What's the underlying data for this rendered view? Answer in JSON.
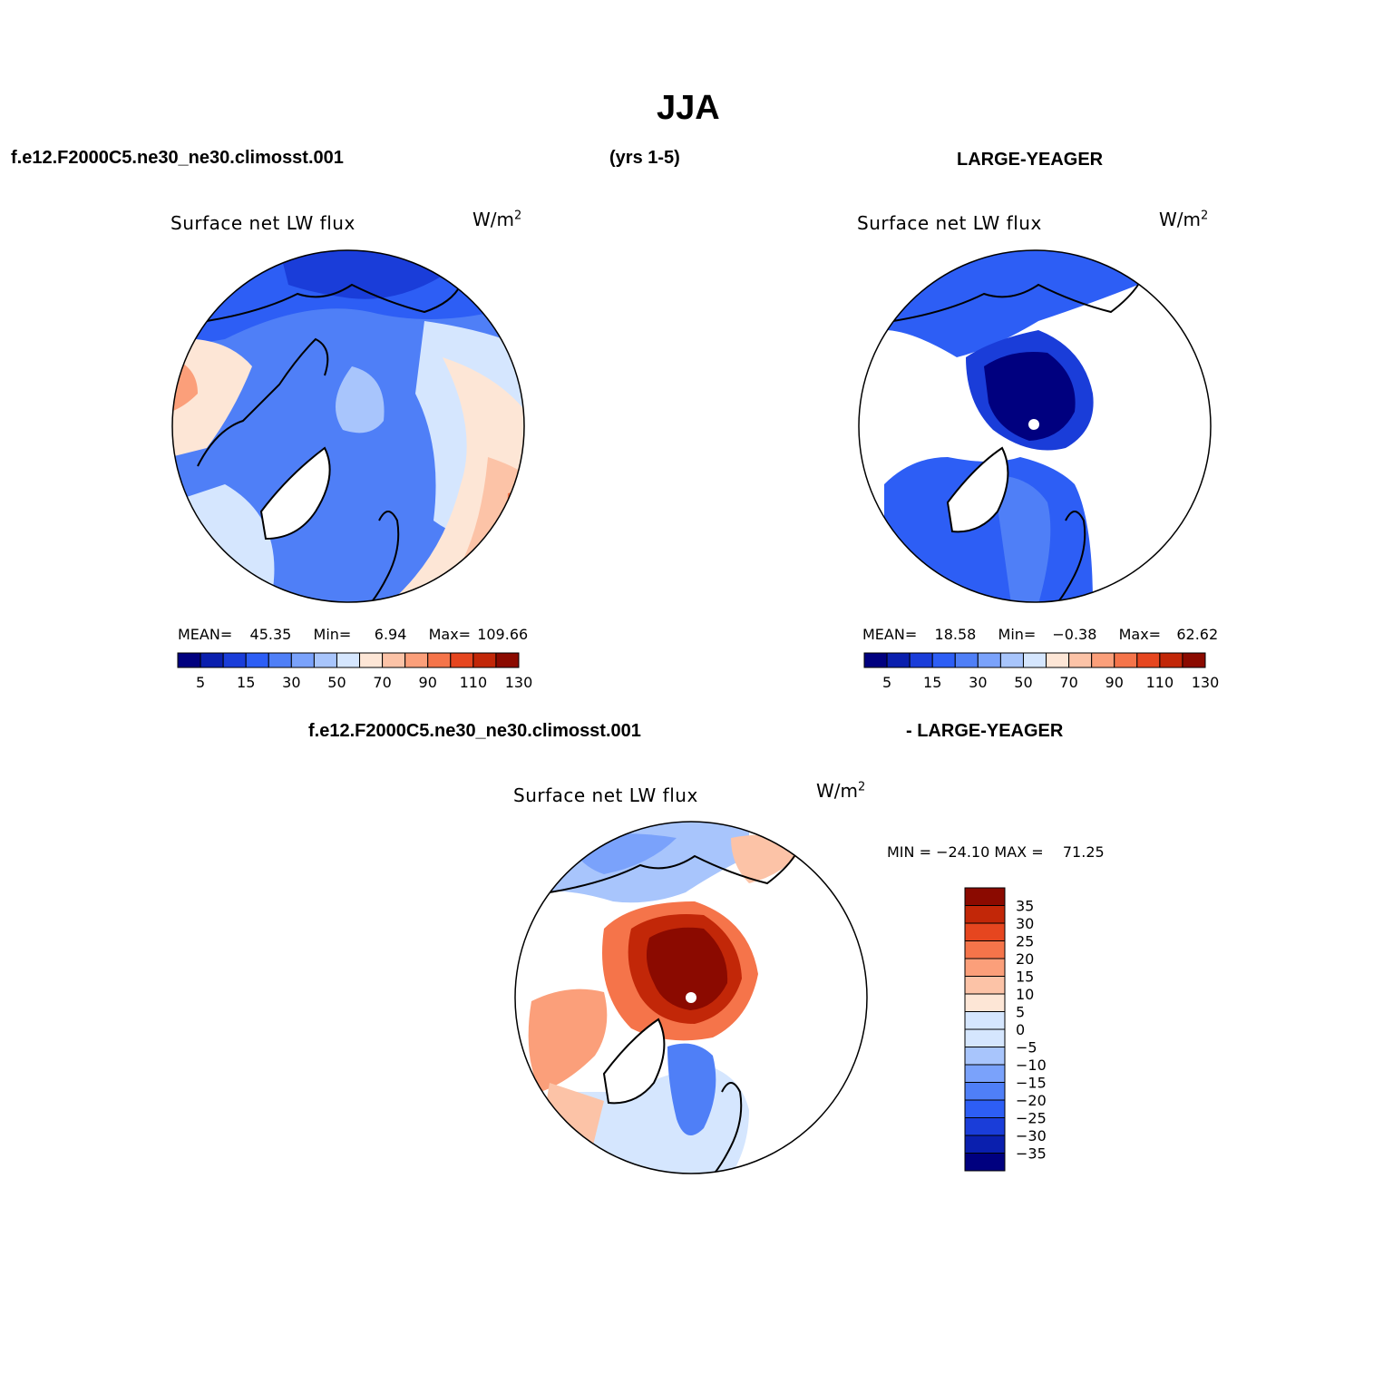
{
  "main_title": "JJA",
  "header": {
    "left_case": "f.e12.F2000C5.ne30_ne30.climosst.001",
    "years": "(yrs 1-5)",
    "right_case": "LARGE-YEAGER"
  },
  "diff_header": {
    "left": "f.e12.F2000C5.ne30_ne30.climosst.001",
    "right": "- LARGE-YEAGER"
  },
  "colors": {
    "seq": [
      "#00007f",
      "#0a1fae",
      "#1a3dd9",
      "#2d5ef5",
      "#4f7ff7",
      "#7aa2fb",
      "#a8c5fc",
      "#d5e6fe",
      "#fde6d6",
      "#fcc3a7",
      "#fb9f7a",
      "#f5744a",
      "#e6461f",
      "#c22708",
      "#8b0a00"
    ],
    "land": "#ffffff",
    "coast": "#000000"
  },
  "chart_data": [
    {
      "type": "heatmap",
      "title": "Surface net LW flux",
      "units": "W/m",
      "units_sup": "2",
      "projection": "north polar stereographic",
      "stats": {
        "mean_label": "MEAN=",
        "mean": "45.35",
        "min_label": "Min=",
        "min": "6.94",
        "max_label": "Max=",
        "max": "109.66"
      },
      "colorbar": {
        "orientation": "horizontal",
        "levels": [
          0,
          5,
          10,
          15,
          20,
          30,
          40,
          50,
          60,
          70,
          80,
          90,
          100,
          110,
          120,
          130
        ],
        "tick_labels": [
          "5",
          "15",
          "30",
          "50",
          "70",
          "90",
          "110",
          "130"
        ]
      }
    },
    {
      "type": "heatmap",
      "title": "Surface net LW flux",
      "units": "W/m",
      "units_sup": "2",
      "projection": "north polar stereographic",
      "stats": {
        "mean_label": "MEAN=",
        "mean": "18.58",
        "min_label": "Min=",
        "min": "−0.38",
        "max_label": "Max=",
        "max": "62.62"
      },
      "colorbar": {
        "orientation": "horizontal",
        "levels": [
          0,
          5,
          10,
          15,
          20,
          30,
          40,
          50,
          60,
          70,
          80,
          90,
          100,
          110,
          120,
          130
        ],
        "tick_labels": [
          "5",
          "15",
          "30",
          "50",
          "70",
          "90",
          "110",
          "130"
        ]
      }
    },
    {
      "type": "heatmap",
      "title": "Surface net LW flux",
      "units": "W/m",
      "units_sup": "2",
      "projection": "north polar stereographic",
      "stats": {
        "min_label": "MIN =",
        "min": "−24.10",
        "max_label": "MAX =",
        "max": "71.25"
      },
      "colorbar": {
        "orientation": "vertical",
        "levels": [
          -40,
          -35,
          -30,
          -25,
          -20,
          -15,
          -10,
          -5,
          0,
          5,
          10,
          15,
          20,
          25,
          30,
          35,
          40
        ],
        "tick_labels": [
          "35",
          "30",
          "25",
          "20",
          "15",
          "10",
          "5",
          "0",
          "−5",
          "−10",
          "−15",
          "−20",
          "−25",
          "−30",
          "−35"
        ]
      }
    }
  ]
}
